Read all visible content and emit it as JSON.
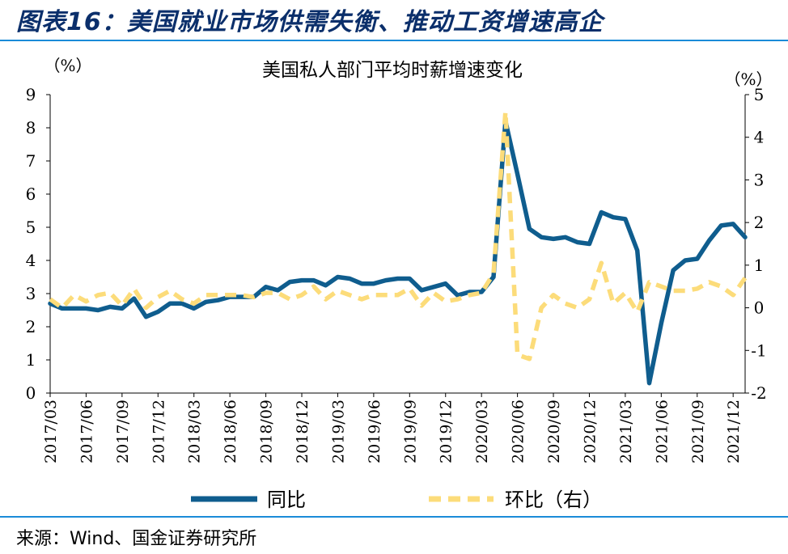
{
  "header": {
    "title": "图表16：美国就业市场供需失衡、推动工资增速高企"
  },
  "footer": {
    "source": "来源：Wind、国金证券研究所"
  },
  "colors": {
    "series_yoy": "#0f5d8e",
    "series_mom": "#fcdc7a",
    "rule": "#1a8bd8",
    "title": "#0b2f6b"
  },
  "chart_data": {
    "type": "line",
    "title": "美国私人部门平均时薪增速变化",
    "y_left_unit": "（%）",
    "y_right_unit": "（%）",
    "y_left_ticks": [
      "9",
      "8",
      "7",
      "6",
      "5",
      "4",
      "3",
      "2",
      "1",
      "0"
    ],
    "y_right_ticks": [
      "5",
      "4",
      "3",
      "2",
      "1",
      "0",
      "-1",
      "-2"
    ],
    "ylim_left": [
      0,
      9
    ],
    "ylim_right": [
      -2,
      5
    ],
    "x_tick_labels": [
      "2017/03",
      "2017/06",
      "2017/09",
      "2017/12",
      "2018/03",
      "2018/06",
      "2018/09",
      "2018/12",
      "2019/03",
      "2019/06",
      "2019/09",
      "2019/12",
      "2020/03",
      "2020/06",
      "2020/09",
      "2020/12",
      "2021/03",
      "2021/06",
      "2021/09",
      "2021/12"
    ],
    "x": [
      "2017/03",
      "2017/04",
      "2017/05",
      "2017/06",
      "2017/07",
      "2017/08",
      "2017/09",
      "2017/10",
      "2017/11",
      "2017/12",
      "2018/01",
      "2018/02",
      "2018/03",
      "2018/04",
      "2018/05",
      "2018/06",
      "2018/07",
      "2018/08",
      "2018/09",
      "2018/10",
      "2018/11",
      "2018/12",
      "2019/01",
      "2019/02",
      "2019/03",
      "2019/04",
      "2019/05",
      "2019/06",
      "2019/07",
      "2019/08",
      "2019/09",
      "2019/10",
      "2019/11",
      "2019/12",
      "2020/01",
      "2020/02",
      "2020/03",
      "2020/04",
      "2020/05",
      "2020/06",
      "2020/07",
      "2020/08",
      "2020/09",
      "2020/10",
      "2020/11",
      "2020/12",
      "2021/01",
      "2021/02",
      "2021/03",
      "2021/04",
      "2021/05",
      "2021/06",
      "2021/07",
      "2021/08",
      "2021/09",
      "2021/10",
      "2021/11",
      "2021/12",
      "2022/01"
    ],
    "series": [
      {
        "name": "同比",
        "axis": "left",
        "values": [
          2.7,
          2.55,
          2.55,
          2.55,
          2.5,
          2.6,
          2.55,
          2.85,
          2.3,
          2.45,
          2.7,
          2.7,
          2.55,
          2.75,
          2.8,
          2.9,
          2.9,
          2.9,
          3.2,
          3.1,
          3.35,
          3.4,
          3.4,
          3.25,
          3.5,
          3.45,
          3.3,
          3.3,
          3.4,
          3.45,
          3.45,
          3.1,
          3.2,
          3.3,
          2.95,
          3.05,
          3.05,
          3.5,
          8.2,
          6.6,
          4.95,
          4.7,
          4.65,
          4.7,
          4.55,
          4.5,
          5.45,
          5.3,
          5.25,
          4.3,
          0.3,
          2.1,
          3.7,
          4.0,
          4.05,
          4.6,
          5.05,
          5.1,
          4.7
        ]
      },
      {
        "name": "环比（右）",
        "axis": "right",
        "values": [
          0.2,
          0.0,
          0.3,
          0.15,
          0.3,
          0.35,
          0.05,
          0.45,
          0.0,
          0.25,
          0.4,
          0.2,
          0.1,
          0.3,
          0.3,
          0.3,
          0.3,
          0.25,
          0.35,
          0.35,
          0.2,
          0.3,
          0.5,
          0.2,
          0.4,
          0.3,
          0.2,
          0.3,
          0.3,
          0.3,
          0.45,
          0.05,
          0.35,
          0.15,
          0.2,
          0.3,
          0.35,
          0.8,
          4.6,
          -1.1,
          -1.2,
          0.0,
          0.3,
          0.1,
          0.0,
          0.2,
          1.05,
          0.1,
          0.35,
          -0.1,
          0.6,
          0.5,
          0.4,
          0.4,
          0.45,
          0.6,
          0.5,
          0.3,
          0.7
        ]
      }
    ],
    "legend": {
      "placement": "bottom",
      "items": [
        "同比",
        "环比（右）"
      ]
    },
    "grid": false
  }
}
